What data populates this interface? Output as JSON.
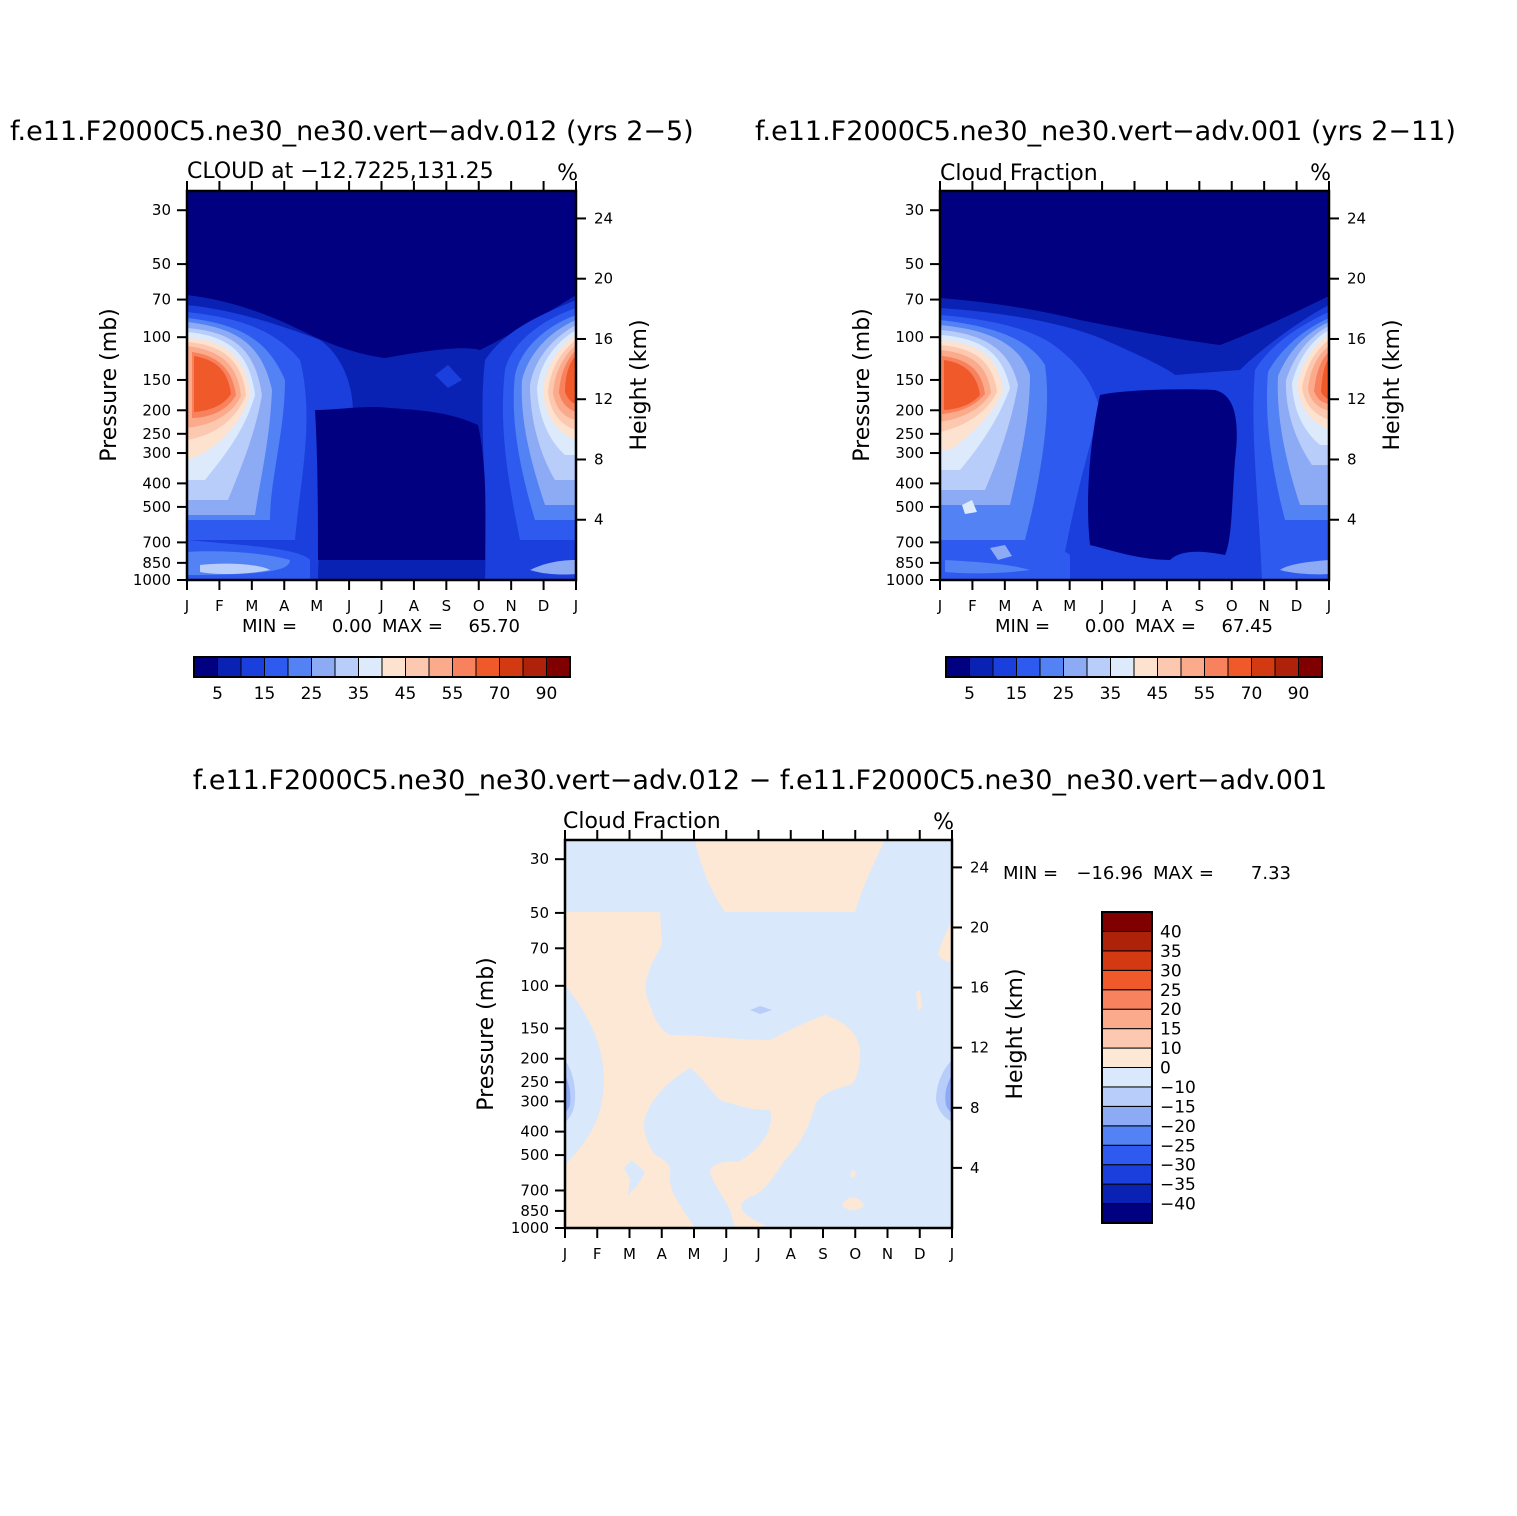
{
  "figure": {
    "top_left_title": "f.e11.F2000C5.ne30_ne30.vert−adv.012 (yrs 2−5)",
    "top_right_title": "f.e11.F2000C5.ne30_ne30.vert−adv.001 (yrs 2−11)",
    "bottom_title": "f.e11.F2000C5.ne30_ne30.vert−adv.012 − f.e11.F2000C5.ne30_ne30.vert−adv.001"
  },
  "colors": {
    "abs_palette": [
      "#000080",
      "#0a22b4",
      "#1a3fdc",
      "#2f5af0",
      "#5282f3",
      "#8daaf5",
      "#b9cdfa",
      "#dceafc",
      "#fde2d0",
      "#fcc9b0",
      "#fbab8c",
      "#f7825d",
      "#f05a2b",
      "#d43a12",
      "#ad2208",
      "#800000"
    ],
    "diff_palette": [
      "#000080",
      "#0a22b4",
      "#1a3fdc",
      "#2f5af0",
      "#5282f3",
      "#8daaf5",
      "#b9cdfa",
      "#d9e9fb",
      "#fde8d6",
      "#fcc9b0",
      "#fbab8c",
      "#f7825d",
      "#f05a2b",
      "#d43a12",
      "#ad2208",
      "#800000"
    ]
  },
  "chart_data": [
    {
      "type": "heatmap",
      "panel": "top-left",
      "subtitle": "CLOUD at −12.7225,131.25",
      "units": "%",
      "xlabel": "",
      "ylabel": "Pressure (mb)",
      "ylabel_right": "Height (km)",
      "x_ticks": [
        "J",
        "F",
        "M",
        "A",
        "M",
        "J",
        "J",
        "A",
        "S",
        "O",
        "N",
        "D",
        "J"
      ],
      "y_ticks": [
        30,
        50,
        70,
        100,
        150,
        200,
        250,
        300,
        400,
        500,
        700,
        850,
        1000
      ],
      "y_ticks_right": [
        24,
        20,
        16,
        12,
        8,
        4
      ],
      "ylim": [
        1000,
        25
      ],
      "y_scale": "log",
      "min_label": "MIN =",
      "min_value": "0.00",
      "max_label": "MAX =",
      "max_value": "65.70",
      "min": 0.0,
      "max": 65.7,
      "colorbar": {
        "orientation": "horizontal",
        "labels": [
          "5",
          "15",
          "25",
          "35",
          "45",
          "55",
          "70",
          "90"
        ]
      }
    },
    {
      "type": "heatmap",
      "panel": "top-right",
      "subtitle": "Cloud Fraction",
      "units": "%",
      "xlabel": "",
      "ylabel": "Pressure (mb)",
      "ylabel_right": "Height (km)",
      "x_ticks": [
        "J",
        "F",
        "M",
        "A",
        "M",
        "J",
        "J",
        "A",
        "S",
        "O",
        "N",
        "D",
        "J"
      ],
      "y_ticks": [
        30,
        50,
        70,
        100,
        150,
        200,
        250,
        300,
        400,
        500,
        700,
        850,
        1000
      ],
      "y_ticks_right": [
        24,
        20,
        16,
        12,
        8,
        4
      ],
      "ylim": [
        1000,
        25
      ],
      "y_scale": "log",
      "min_label": "MIN =",
      "min_value": "0.00",
      "max_label": "MAX =",
      "max_value": "67.45",
      "min": 0.0,
      "max": 67.45,
      "colorbar": {
        "orientation": "horizontal",
        "labels": [
          "5",
          "15",
          "25",
          "35",
          "45",
          "55",
          "70",
          "90"
        ]
      }
    },
    {
      "type": "heatmap",
      "panel": "bottom-difference",
      "subtitle": "Cloud Fraction",
      "units": "%",
      "xlabel": "",
      "ylabel": "Pressure (mb)",
      "ylabel_right": "Height (km)",
      "x_ticks": [
        "J",
        "F",
        "M",
        "A",
        "M",
        "J",
        "J",
        "A",
        "S",
        "O",
        "N",
        "D",
        "J"
      ],
      "y_ticks": [
        30,
        50,
        70,
        100,
        150,
        200,
        250,
        300,
        400,
        500,
        700,
        850,
        1000
      ],
      "y_ticks_right": [
        24,
        20,
        16,
        12,
        8,
        4
      ],
      "ylim": [
        1000,
        25
      ],
      "y_scale": "log",
      "min_label": "MIN =",
      "min_value": "−16.96",
      "max_label": "MAX =",
      "max_value": "7.33",
      "min": -16.96,
      "max": 7.33,
      "colorbar": {
        "orientation": "vertical",
        "labels": [
          "40",
          "35",
          "30",
          "25",
          "20",
          "15",
          "10",
          "0",
          "−10",
          "−15",
          "−20",
          "−25",
          "−30",
          "−35",
          "−40"
        ]
      }
    }
  ]
}
